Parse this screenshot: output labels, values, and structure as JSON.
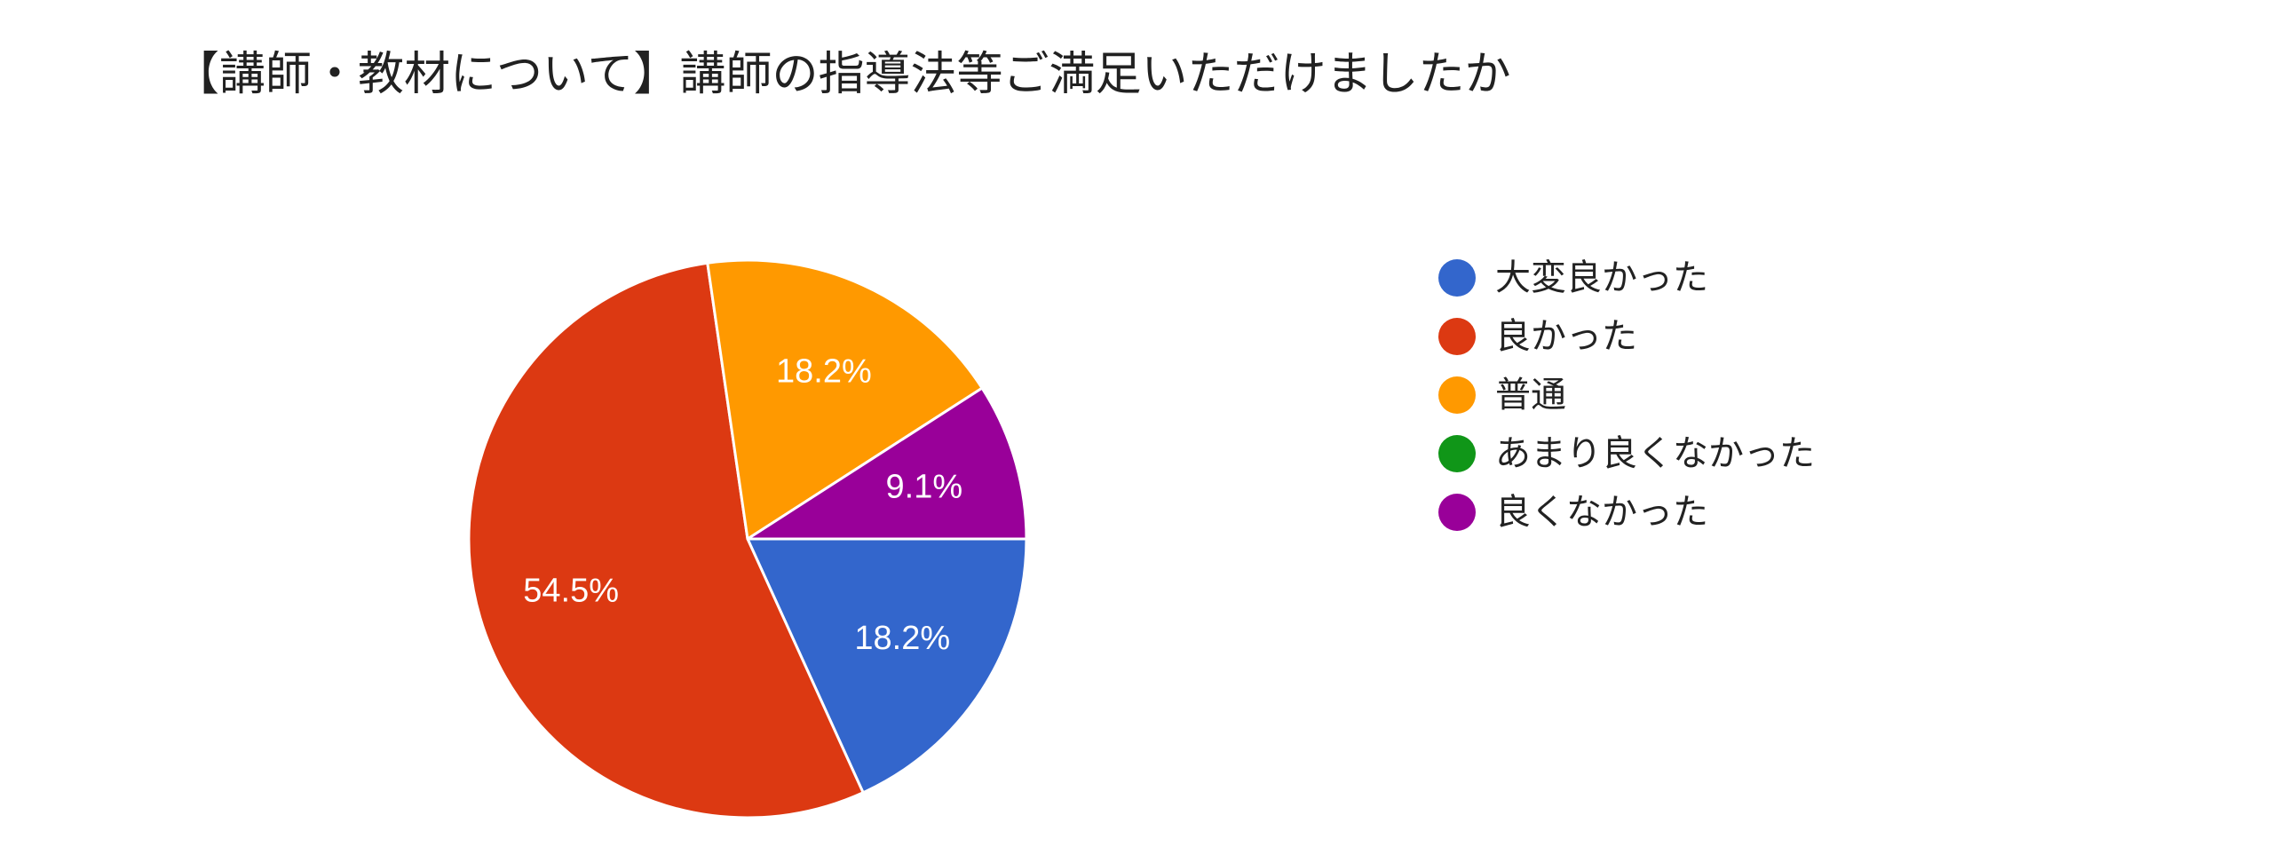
{
  "chart_data": {
    "type": "pie",
    "title": "【講師・教材について】講師の指導法等ご満足いただけましたか",
    "categories": [
      "大変良かった",
      "良かった",
      "普通",
      "あまり良くなかった",
      "良くなかった"
    ],
    "values": [
      18.2,
      54.5,
      18.2,
      0,
      9.1
    ],
    "value_labels": [
      "18.2%",
      "54.5%",
      "18.2%",
      "",
      "9.1%"
    ],
    "colors": [
      "#3366cc",
      "#dc3912",
      "#ff9900",
      "#109618",
      "#990099"
    ],
    "legend_position": "right",
    "start": "3 o'clock",
    "direction": "clockwise"
  }
}
